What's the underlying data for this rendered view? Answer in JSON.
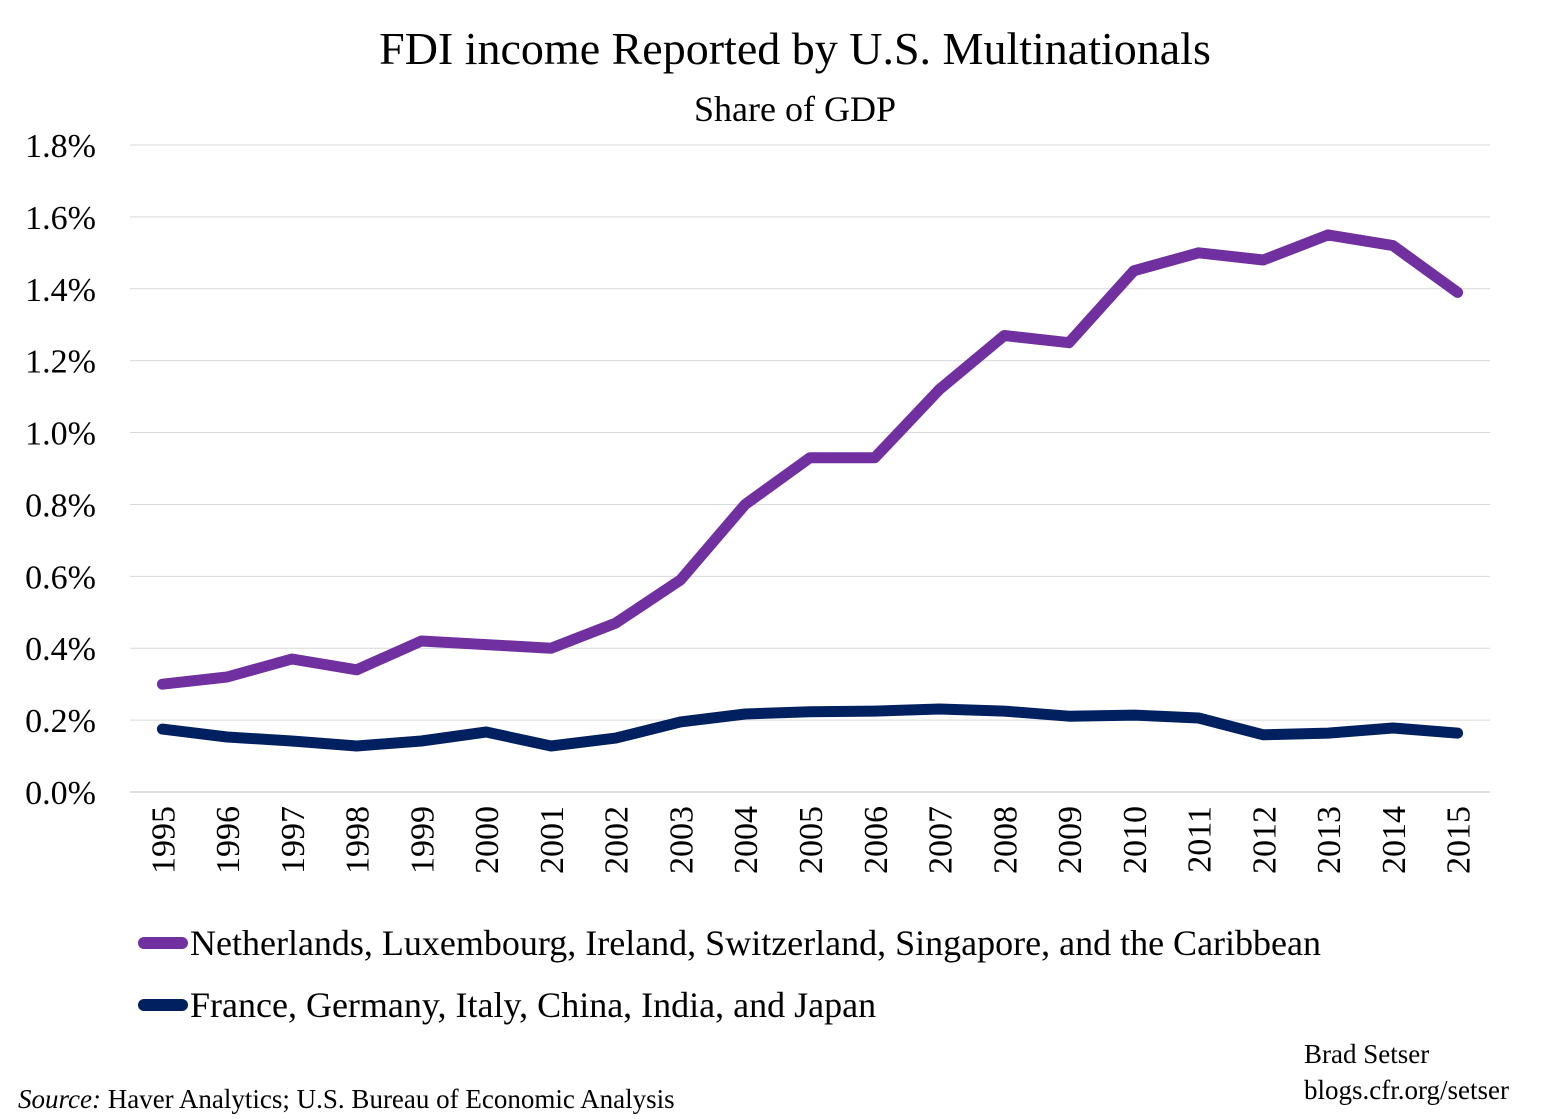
{
  "chart_data": {
    "type": "line",
    "title": "FDI income Reported by U.S. Multinationals",
    "subtitle": "Share of GDP",
    "xlabel": "",
    "ylabel": "",
    "categories": [
      "1995",
      "1996",
      "1997",
      "1998",
      "1999",
      "2000",
      "2001",
      "2002",
      "2003",
      "2004",
      "2005",
      "2006",
      "2007",
      "2008",
      "2009",
      "2010",
      "2011",
      "2012",
      "2013",
      "2014",
      "2015"
    ],
    "ylim": [
      0,
      1.8
    ],
    "yticks": [
      "0.0%",
      "0.2%",
      "0.4%",
      "0.6%",
      "0.8%",
      "1.0%",
      "1.2%",
      "1.4%",
      "1.6%",
      "1.8%"
    ],
    "grid": true,
    "legend_position": "bottom",
    "series": [
      {
        "name": "Netherlands, Luxembourg, Ireland, Switzerland, Singapore, and the Caribbean",
        "color": "#7030A0",
        "values": [
          0.3,
          0.32,
          0.37,
          0.34,
          0.42,
          0.41,
          0.4,
          0.47,
          0.59,
          0.8,
          0.93,
          0.93,
          1.12,
          1.27,
          1.25,
          1.45,
          1.5,
          1.48,
          1.55,
          1.52,
          1.39
        ]
      },
      {
        "name": "France, Germany, Italy, China, India, and Japan",
        "color": "#002060",
        "values": [
          0.175,
          0.153,
          0.142,
          0.128,
          0.142,
          0.167,
          0.128,
          0.15,
          0.195,
          0.217,
          0.223,
          0.225,
          0.231,
          0.225,
          0.211,
          0.214,
          0.206,
          0.159,
          0.164,
          0.178,
          0.164
        ]
      }
    ]
  },
  "source_label": "Source:",
  "source_text": " Haver Analytics; U.S. Bureau of Economic Analysis",
  "author": "Brad Setser",
  "author_url": "blogs.cfr.org/setser"
}
